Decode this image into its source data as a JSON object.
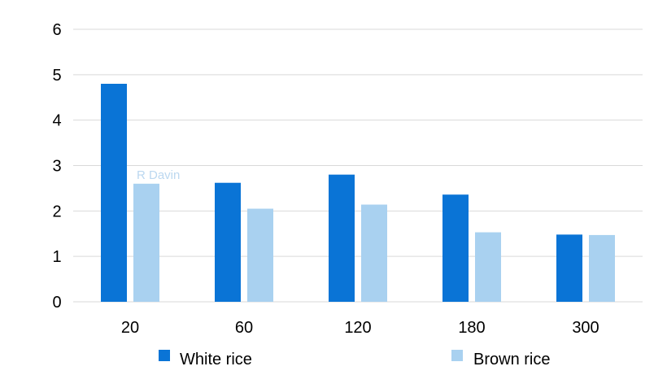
{
  "watermark": {
    "text": "R Davin"
  },
  "colors": {
    "white_rice": "#0a74d6",
    "brown_rice": "#a9d1f0",
    "grid": "#d9d9d9",
    "background": "#ffffff"
  },
  "chart_data": {
    "type": "bar",
    "title": "",
    "xlabel": "",
    "ylabel": "",
    "categories": [
      "20",
      "60",
      "120",
      "180",
      "300"
    ],
    "series": [
      {
        "name": "White rice",
        "values": [
          4.8,
          2.62,
          2.8,
          2.36,
          1.48
        ],
        "color": "#0a74d6"
      },
      {
        "name": "Brown rice",
        "values": [
          2.6,
          2.05,
          2.14,
          1.53,
          1.47
        ],
        "color": "#a9d1f0"
      }
    ],
    "ylim": [
      0,
      6
    ],
    "yticks": [
      "0",
      "1",
      "2",
      "3",
      "4",
      "5",
      "6"
    ],
    "grid": true,
    "legend_position": "bottom"
  }
}
